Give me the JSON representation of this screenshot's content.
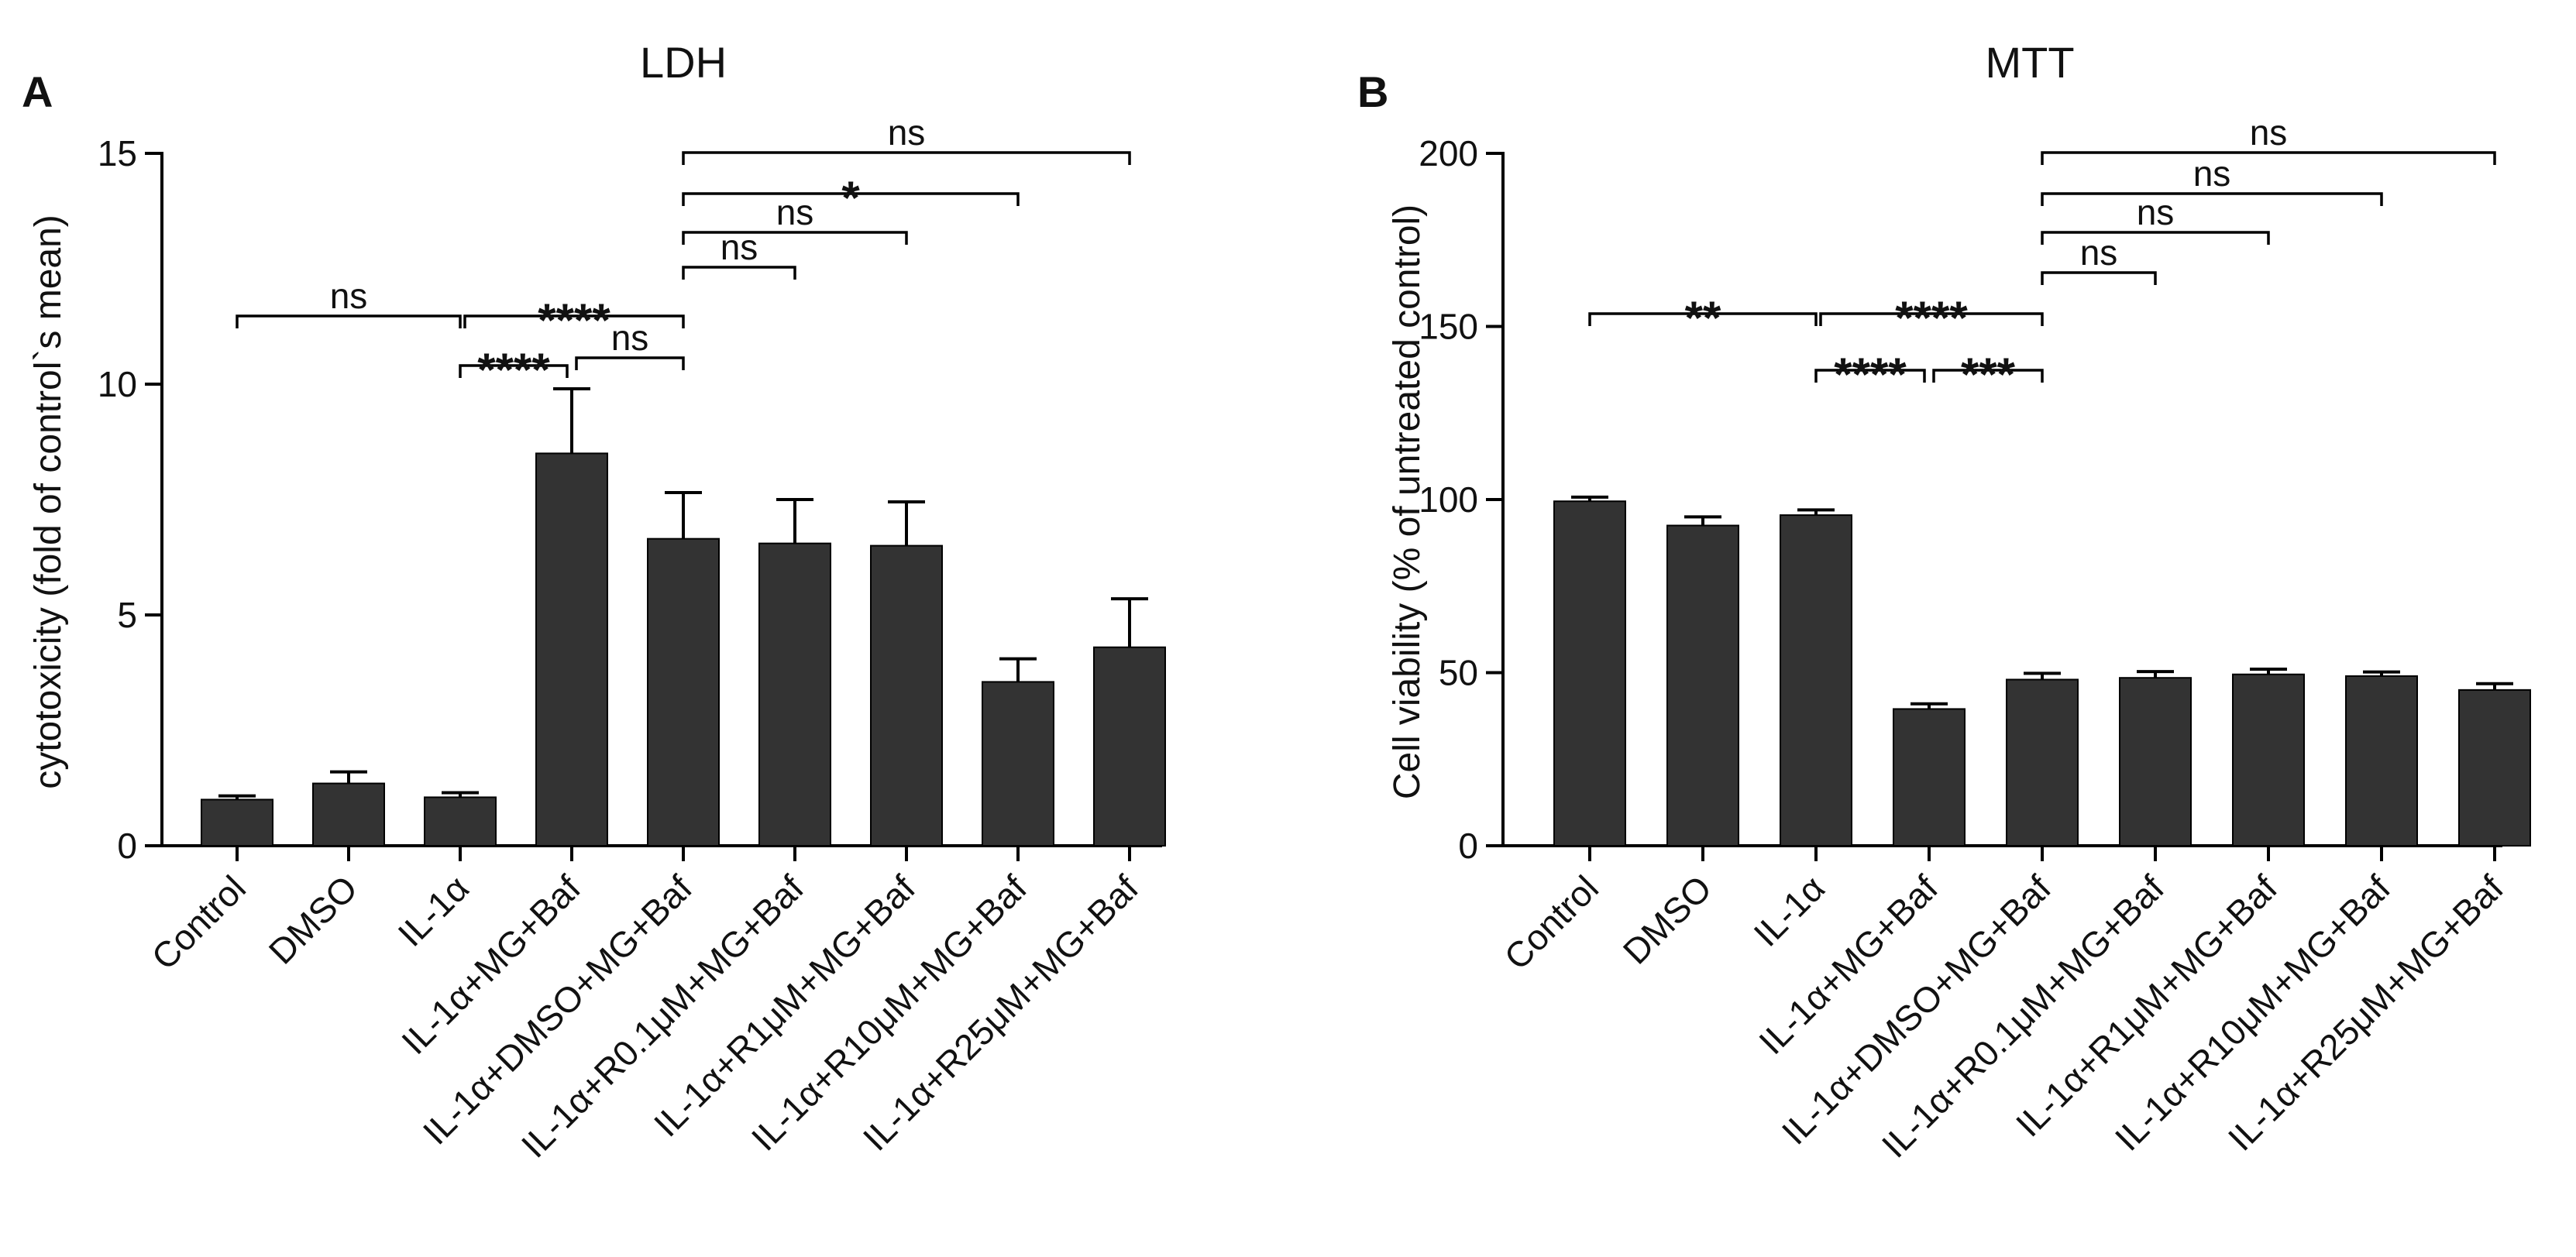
{
  "chart_data": [
    {
      "type": "bar",
      "panel": "A",
      "title": "LDH",
      "xlabel": "",
      "ylabel": "cytotoxicity (fold of control`s mean)",
      "ylim": [
        0,
        15
      ],
      "yticks": [
        "0",
        "5",
        "10",
        "15"
      ],
      "categories": [
        "Control",
        "DMSO",
        "IL-1α",
        "IL-1α+MG+Baf",
        "IL-1α+DMSO+MG+Baf",
        "IL-1α+R0.1μM+MG+Baf",
        "IL-1α+R1μM+MG+Baf",
        "IL-1α+R10μM+MG+Baf",
        "IL-1α+R25μM+MG+Baf"
      ],
      "values": [
        1.0,
        1.35,
        1.05,
        8.5,
        6.65,
        6.55,
        6.5,
        3.55,
        4.3
      ],
      "errors": [
        0.08,
        0.25,
        0.1,
        1.4,
        1.0,
        0.95,
        0.95,
        0.5,
        1.05
      ],
      "significance": [
        {
          "from": 0,
          "to": 2,
          "label": "ns"
        },
        {
          "from": 2,
          "to": 4,
          "label": "****"
        },
        {
          "from": 2,
          "to": 3,
          "label": "****"
        },
        {
          "from": 3,
          "to": 4,
          "label": "ns"
        },
        {
          "from": 4,
          "to": 5,
          "label": "ns"
        },
        {
          "from": 4,
          "to": 6,
          "label": "ns"
        },
        {
          "from": 4,
          "to": 7,
          "label": "*"
        },
        {
          "from": 4,
          "to": 8,
          "label": "ns"
        }
      ]
    },
    {
      "type": "bar",
      "panel": "B",
      "title": "MTT",
      "xlabel": "",
      "ylabel": "Cell viability (% of untreated control)",
      "ylim": [
        0,
        200
      ],
      "yticks": [
        "0",
        "50",
        "100",
        "150",
        "200"
      ],
      "categories": [
        "Control",
        "DMSO",
        "IL-1α",
        "IL-1α+MG+Baf",
        "IL-1α+DMSO+MG+Baf",
        "IL-1α+R0.1μM+MG+Baf",
        "IL-1α+R1μM+MG+Baf",
        "IL-1α+R10μM+MG+Baf",
        "IL-1α+R25μM+MG+Baf"
      ],
      "values": [
        99.5,
        92.5,
        95.5,
        39.5,
        48,
        48.5,
        49.5,
        49,
        45
      ],
      "errors": [
        1.2,
        2.5,
        1.5,
        1.5,
        1.8,
        1.8,
        1.5,
        1.2,
        1.8
      ],
      "significance": [
        {
          "from": 0,
          "to": 2,
          "label": "**"
        },
        {
          "from": 2,
          "to": 4,
          "label": "****"
        },
        {
          "from": 2,
          "to": 3,
          "label": "****"
        },
        {
          "from": 3,
          "to": 4,
          "label": "***"
        },
        {
          "from": 4,
          "to": 5,
          "label": "ns"
        },
        {
          "from": 4,
          "to": 6,
          "label": "ns"
        },
        {
          "from": 4,
          "to": 7,
          "label": "ns"
        },
        {
          "from": 4,
          "to": 8,
          "label": "ns"
        }
      ]
    }
  ]
}
